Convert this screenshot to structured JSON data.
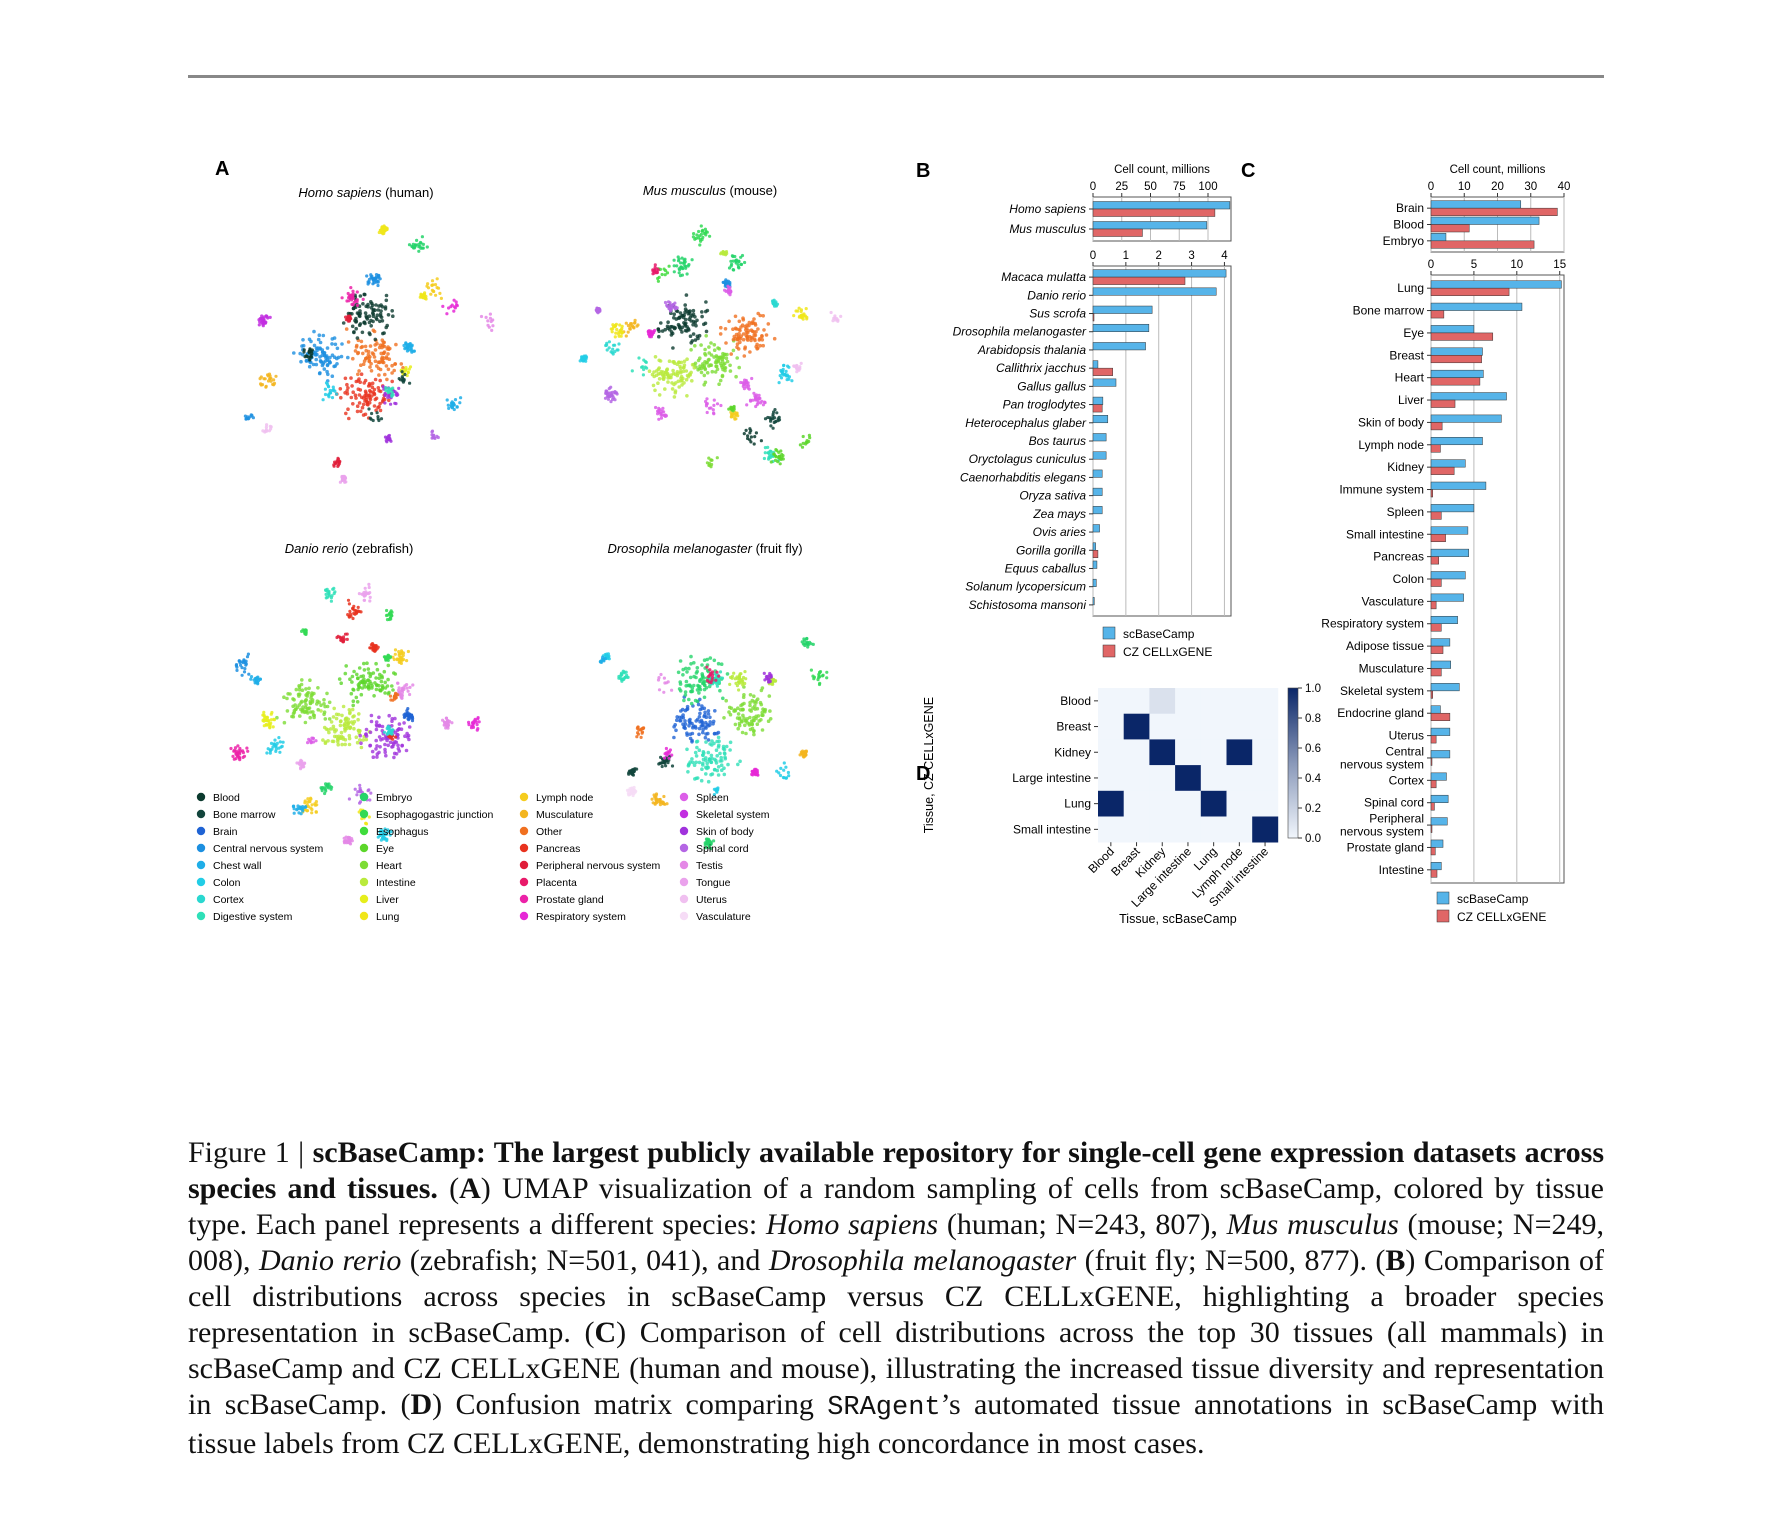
{
  "panels": {
    "a_label": "A",
    "b_label": "B",
    "c_label": "C",
    "d_label": "D"
  },
  "umap": {
    "titles": [
      {
        "italic": "Homo sapiens",
        "rest": " (human)"
      },
      {
        "italic": "Mus musculus",
        "rest": " (mouse)"
      },
      {
        "italic": "Danio rerio",
        "rest": " (zebrafish)"
      },
      {
        "italic": "Drosophila melanogaster",
        "rest": " (fruit fly)"
      }
    ],
    "legend": [
      {
        "label": "Blood",
        "color": "#0b3a2e"
      },
      {
        "label": "Bone marrow",
        "color": "#12453c"
      },
      {
        "label": "Brain",
        "color": "#1f63d4"
      },
      {
        "label": "Central nervous system",
        "color": "#1c8fe0"
      },
      {
        "label": "Chest wall",
        "color": "#1faee8"
      },
      {
        "label": "Colon",
        "color": "#22cde6"
      },
      {
        "label": "Cortex",
        "color": "#2ad8d0"
      },
      {
        "label": "Digestive system",
        "color": "#2fe0b8"
      },
      {
        "label": "Embryo",
        "color": "#25d46a"
      },
      {
        "label": "Esophagogastric junction",
        "color": "#33d955"
      },
      {
        "label": "Esophagus",
        "color": "#3fdc3c"
      },
      {
        "label": "Eye",
        "color": "#5cd62a"
      },
      {
        "label": "Heart",
        "color": "#7ddc35"
      },
      {
        "label": "Intestine",
        "color": "#b9ea3c"
      },
      {
        "label": "Liver",
        "color": "#e6ee1c"
      },
      {
        "label": "Lung",
        "color": "#f0e61a"
      },
      {
        "label": "Lymph node",
        "color": "#f5cc1e"
      },
      {
        "label": "Musculature",
        "color": "#f3b51f"
      },
      {
        "label": "Other",
        "color": "#f07020"
      },
      {
        "label": "Pancreas",
        "color": "#e8321e"
      },
      {
        "label": "Peripheral nervous system",
        "color": "#e01e3a"
      },
      {
        "label": "Placenta",
        "color": "#e81a6a"
      },
      {
        "label": "Prostate gland",
        "color": "#ec22a8"
      },
      {
        "label": "Respiratory system",
        "color": "#e628d6"
      },
      {
        "label": "Spleen",
        "color": "#dc5ee8"
      },
      {
        "label": "Skeletal system",
        "color": "#c22ee0"
      },
      {
        "label": "Skin of body",
        "color": "#a033dc"
      },
      {
        "label": "Spinal cord",
        "color": "#b466e4"
      },
      {
        "label": "Testis",
        "color": "#e488e6"
      },
      {
        "label": "Tongue",
        "color": "#eaa2ec"
      },
      {
        "label": "Uterus",
        "color": "#f0c0f0"
      },
      {
        "label": "Vasculature",
        "color": "#f6dcf6"
      }
    ]
  },
  "chart_data": [
    {
      "id": "B-top",
      "type": "bar",
      "orientation": "horizontal",
      "title": "Cell count, millions",
      "xlim": [
        0,
        120
      ],
      "ticks": [
        0,
        25,
        50,
        75,
        100
      ],
      "categories": [
        "Homo sapiens",
        "Mus musculus"
      ],
      "series": [
        {
          "name": "scBaseCamp",
          "color": "#56b4e9",
          "values": [
            119,
            99
          ]
        },
        {
          "name": "CZ CELLxGENE",
          "color": "#e06666",
          "values": [
            106,
            43
          ]
        }
      ]
    },
    {
      "id": "B-bottom",
      "type": "bar",
      "orientation": "horizontal",
      "xlim": [
        0,
        4.2
      ],
      "ticks": [
        0,
        1,
        2,
        3,
        4
      ],
      "categories": [
        "Macaca mulatta",
        "Danio rerio",
        "Sus scrofa",
        "Drosophila melanogaster",
        "Arabidopsis thalania",
        "Callithrix jacchus",
        "Gallus gallus",
        "Pan troglodytes",
        "Heterocephalus glaber",
        "Bos taurus",
        "Oryctolagus cuniculus",
        "Caenorhabditis elegans",
        "Oryza sativa",
        "Zea mays",
        "Ovis aries",
        "Gorilla gorilla",
        "Equus caballus",
        "Solanum lycopersicum",
        "Schistosoma mansoni"
      ],
      "series": [
        {
          "name": "scBaseCamp",
          "color": "#56b4e9",
          "values": [
            4.05,
            3.75,
            1.8,
            1.7,
            1.6,
            0.15,
            0.7,
            0.3,
            0.45,
            0.4,
            0.4,
            0.28,
            0.28,
            0.28,
            0.2,
            0.08,
            0.12,
            0.1,
            0.04
          ]
        },
        {
          "name": "CZ CELLxGENE",
          "color": "#e06666",
          "values": [
            2.8,
            0,
            0.03,
            0,
            0,
            0.6,
            0,
            0.28,
            0,
            0,
            0,
            0,
            0,
            0,
            0,
            0.15,
            0,
            0,
            0
          ]
        }
      ],
      "legend": [
        "scBaseCamp",
        "CZ CELLxGENE"
      ]
    },
    {
      "id": "C-top",
      "type": "bar",
      "orientation": "horizontal",
      "title": "Cell count, millions",
      "xlim": [
        0,
        40
      ],
      "ticks": [
        0,
        10,
        20,
        30,
        40
      ],
      "categories": [
        "Brain",
        "Blood",
        "Embryo"
      ],
      "series": [
        {
          "name": "scBaseCamp",
          "color": "#56b4e9",
          "values": [
            27,
            32.5,
            4.5
          ]
        },
        {
          "name": "CZ CELLxGENE",
          "color": "#e06666",
          "values": [
            38,
            11.5,
            31
          ]
        }
      ]
    },
    {
      "id": "C-bottom",
      "type": "bar",
      "orientation": "horizontal",
      "xlim": [
        0,
        15.5
      ],
      "ticks": [
        0,
        5,
        10,
        15
      ],
      "categories": [
        "Lung",
        "Bone marrow",
        "Eye",
        "Breast",
        "Heart",
        "Liver",
        "Skin of body",
        "Lymph node",
        "Kidney",
        "Immune system",
        "Spleen",
        "Small intestine",
        "Pancreas",
        "Colon",
        "Vasculature",
        "Respiratory system",
        "Adipose tissue",
        "Musculature",
        "Skeletal system",
        "Endocrine gland",
        "Uterus",
        "Central nervous system",
        "Cortex",
        "Spinal cord",
        "Peripheral nervous system",
        "Prostate gland",
        "Intestine"
      ],
      "series": [
        {
          "name": "scBaseCamp",
          "color": "#56b4e9",
          "values": [
            15.2,
            10.6,
            5.0,
            6.0,
            6.1,
            8.8,
            8.2,
            6.0,
            4.0,
            6.4,
            5.0,
            4.3,
            4.4,
            4.0,
            3.8,
            3.1,
            2.2,
            2.3,
            3.3,
            1.1,
            2.2,
            2.2,
            1.8,
            2.0,
            1.9,
            1.4,
            1.2
          ]
        },
        {
          "name": "CZ CELLxGENE",
          "color": "#e06666",
          "values": [
            9.1,
            1.5,
            7.2,
            5.9,
            5.7,
            2.8,
            1.3,
            1.1,
            2.7,
            0.2,
            1.2,
            1.7,
            0.9,
            1.2,
            0.6,
            1.2,
            1.4,
            1.2,
            0.2,
            2.2,
            0.6,
            0.1,
            0.6,
            0.4,
            0.1,
            0.5,
            0.7
          ]
        }
      ],
      "legend": [
        "scBaseCamp",
        "CZ CELLxGENE"
      ]
    },
    {
      "id": "D",
      "type": "heatmap",
      "rows": [
        "Blood",
        "Breast",
        "Kidney",
        "Large intestine",
        "Lung",
        "Small intestine"
      ],
      "cols": [
        "Blood",
        "Breast",
        "Kidney",
        "Large intestine",
        "Lung",
        "Lymph node",
        "Small intestine"
      ],
      "xlabel": "Tissue, scBaseCamp",
      "ylabel": "Tissue, CZ CELLxGENE",
      "values": [
        [
          0,
          0,
          0.1,
          0,
          0,
          0,
          0
        ],
        [
          0,
          1,
          0,
          0,
          0,
          0,
          0
        ],
        [
          0,
          0,
          1,
          0,
          0,
          1,
          0
        ],
        [
          0,
          0,
          0,
          1,
          0,
          0,
          0
        ],
        [
          1,
          0,
          0,
          0,
          1,
          0,
          0
        ],
        [
          0,
          0,
          0,
          0,
          0,
          0,
          1
        ]
      ],
      "colorbar_ticks": [
        "1.0",
        "0.8",
        "0.6",
        "0.4",
        "0.2",
        "0.0"
      ]
    }
  ],
  "caption": {
    "figure_num": "Figure 1 | ",
    "title": "scBaseCamp: The largest publicly available repository for single-cell gene expression datasets across species and tissues.",
    "a_ref": "A",
    "a_text_1": ") UMAP visualization of a random sampling of cells from scBaseCamp, colored by tissue type. Each panel represents a different species: ",
    "hs": "Homo sapiens",
    "hs_n": " (human; N=243, 807), ",
    "mm": "Mus musculus",
    "mm_n": " (mouse; N=249, 008), ",
    "dr": "Danio rerio",
    "dr_n": " (zebrafish; N=501, 041), and ",
    "dm": "Drosophila melanogaster",
    "dm_n": " (fruit fly; N=500, 877). (",
    "b_ref": "B",
    "b_text": ") Comparison of cell distributions across species in scBaseCamp versus CZ CELLxGENE, highlighting a broader species representation in scBaseCamp. (",
    "c_ref": "C",
    "c_text": ") Comparison of cell distributions across the top 30 tissues (all mammals) in scBaseCamp and CZ CELLxGENE (human and mouse), illustrating the increased tissue diversity and representation in scBaseCamp. (",
    "d_ref": "D",
    "d_text_1": ") Confusion matrix comparing ",
    "sragent": "SRAgent",
    "d_text_2": "’s automated tissue annotations in scBaseCamp with tissue labels from CZ CELLxGENE, demonstrating high concordance in most cases."
  }
}
